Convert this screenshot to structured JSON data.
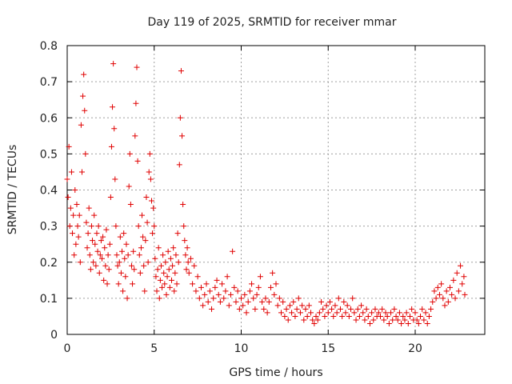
{
  "chart_data": {
    "type": "scatter",
    "title": "Day 119 of 2025, SRMTID for receiver mmar",
    "xlabel": "GPS time / hours",
    "ylabel": "SRMTID / TECUs",
    "xlim": [
      0,
      24
    ],
    "ylim": [
      0,
      0.8
    ],
    "xticks": [
      0,
      5,
      10,
      15,
      20
    ],
    "yticks": [
      0,
      0.1,
      0.2,
      0.3,
      0.4,
      0.5,
      0.6,
      0.7,
      0.8
    ],
    "xtick_labels": [
      "0",
      "5",
      "10",
      "15",
      "20"
    ],
    "ytick_labels": [
      "0",
      "0.1",
      "0.2",
      "0.3",
      "0.4",
      "0.5",
      "0.6",
      "0.7",
      "0.8"
    ],
    "grid": true,
    "marker": "+",
    "marker_color": "#e00000",
    "series": [
      {
        "name": "SRMTID",
        "points": [
          [
            0.0,
            0.43
          ],
          [
            0.05,
            0.38
          ],
          [
            0.1,
            0.52
          ],
          [
            0.15,
            0.3
          ],
          [
            0.2,
            0.35
          ],
          [
            0.25,
            0.45
          ],
          [
            0.3,
            0.28
          ],
          [
            0.35,
            0.33
          ],
          [
            0.4,
            0.22
          ],
          [
            0.45,
            0.4
          ],
          [
            0.5,
            0.25
          ],
          [
            0.55,
            0.36
          ],
          [
            0.6,
            0.3
          ],
          [
            0.65,
            0.27
          ],
          [
            0.7,
            0.33
          ],
          [
            0.75,
            0.2
          ],
          [
            0.8,
            0.58
          ],
          [
            0.85,
            0.45
          ],
          [
            0.9,
            0.66
          ],
          [
            0.95,
            0.72
          ],
          [
            1.0,
            0.62
          ],
          [
            1.05,
            0.5
          ],
          [
            1.1,
            0.31
          ],
          [
            1.15,
            0.24
          ],
          [
            1.2,
            0.28
          ],
          [
            1.25,
            0.35
          ],
          [
            1.3,
            0.22
          ],
          [
            1.35,
            0.18
          ],
          [
            1.4,
            0.3
          ],
          [
            1.45,
            0.26
          ],
          [
            1.5,
            0.2
          ],
          [
            1.55,
            0.33
          ],
          [
            1.6,
            0.25
          ],
          [
            1.65,
            0.19
          ],
          [
            1.7,
            0.28
          ],
          [
            1.75,
            0.23
          ],
          [
            1.8,
            0.3
          ],
          [
            1.85,
            0.17
          ],
          [
            1.9,
            0.22
          ],
          [
            1.95,
            0.26
          ],
          [
            2.0,
            0.21
          ],
          [
            2.05,
            0.27
          ],
          [
            2.1,
            0.15
          ],
          [
            2.15,
            0.24
          ],
          [
            2.2,
            0.19
          ],
          [
            2.25,
            0.29
          ],
          [
            2.3,
            0.14
          ],
          [
            2.35,
            0.22
          ],
          [
            2.4,
            0.18
          ],
          [
            2.45,
            0.25
          ],
          [
            2.5,
            0.38
          ],
          [
            2.55,
            0.52
          ],
          [
            2.6,
            0.63
          ],
          [
            2.65,
            0.75
          ],
          [
            2.7,
            0.57
          ],
          [
            2.75,
            0.43
          ],
          [
            2.8,
            0.3
          ],
          [
            2.85,
            0.22
          ],
          [
            2.9,
            0.19
          ],
          [
            2.95,
            0.14
          ],
          [
            3.0,
            0.2
          ],
          [
            3.05,
            0.27
          ],
          [
            3.1,
            0.17
          ],
          [
            3.15,
            0.23
          ],
          [
            3.2,
            0.12
          ],
          [
            3.25,
            0.28
          ],
          [
            3.3,
            0.21
          ],
          [
            3.35,
            0.16
          ],
          [
            3.4,
            0.25
          ],
          [
            3.45,
            0.1
          ],
          [
            3.5,
            0.22
          ],
          [
            3.55,
            0.41
          ],
          [
            3.6,
            0.5
          ],
          [
            3.65,
            0.36
          ],
          [
            3.7,
            0.19
          ],
          [
            3.75,
            0.14
          ],
          [
            3.8,
            0.23
          ],
          [
            3.85,
            0.18
          ],
          [
            3.9,
            0.55
          ],
          [
            3.95,
            0.64
          ],
          [
            4.0,
            0.74
          ],
          [
            4.05,
            0.48
          ],
          [
            4.1,
            0.3
          ],
          [
            4.15,
            0.22
          ],
          [
            4.2,
            0.17
          ],
          [
            4.25,
            0.24
          ],
          [
            4.3,
            0.33
          ],
          [
            4.35,
            0.27
          ],
          [
            4.4,
            0.19
          ],
          [
            4.45,
            0.12
          ],
          [
            4.5,
            0.26
          ],
          [
            4.55,
            0.38
          ],
          [
            4.6,
            0.31
          ],
          [
            4.65,
            0.2
          ],
          [
            4.7,
            0.45
          ],
          [
            4.75,
            0.5
          ],
          [
            4.8,
            0.43
          ],
          [
            4.85,
            0.37
          ],
          [
            4.9,
            0.28
          ],
          [
            4.95,
            0.35
          ],
          [
            5.0,
            0.3
          ],
          [
            5.05,
            0.21
          ],
          [
            5.1,
            0.16
          ],
          [
            5.15,
            0.12
          ],
          [
            5.2,
            0.18
          ],
          [
            5.25,
            0.24
          ],
          [
            5.3,
            0.1
          ],
          [
            5.35,
            0.15
          ],
          [
            5.4,
            0.19
          ],
          [
            5.45,
            0.13
          ],
          [
            5.5,
            0.22
          ],
          [
            5.55,
            0.17
          ],
          [
            5.6,
            0.14
          ],
          [
            5.65,
            0.2
          ],
          [
            5.7,
            0.11
          ],
          [
            5.75,
            0.16
          ],
          [
            5.8,
            0.23
          ],
          [
            5.85,
            0.18
          ],
          [
            5.9,
            0.13
          ],
          [
            5.95,
            0.21
          ],
          [
            6.0,
            0.15
          ],
          [
            6.05,
            0.19
          ],
          [
            6.1,
            0.24
          ],
          [
            6.15,
            0.12
          ],
          [
            6.2,
            0.17
          ],
          [
            6.25,
            0.22
          ],
          [
            6.3,
            0.14
          ],
          [
            6.35,
            0.28
          ],
          [
            6.4,
            0.2
          ],
          [
            6.45,
            0.47
          ],
          [
            6.5,
            0.6
          ],
          [
            6.55,
            0.73
          ],
          [
            6.6,
            0.55
          ],
          [
            6.65,
            0.36
          ],
          [
            6.7,
            0.3
          ],
          [
            6.75,
            0.26
          ],
          [
            6.8,
            0.22
          ],
          [
            6.85,
            0.18
          ],
          [
            6.9,
            0.24
          ],
          [
            6.95,
            0.2
          ],
          [
            7.0,
            0.17
          ],
          [
            7.1,
            0.21
          ],
          [
            7.2,
            0.14
          ],
          [
            7.3,
            0.19
          ],
          [
            7.4,
            0.12
          ],
          [
            7.5,
            0.16
          ],
          [
            7.6,
            0.1
          ],
          [
            7.7,
            0.13
          ],
          [
            7.8,
            0.08
          ],
          [
            7.9,
            0.11
          ],
          [
            8.0,
            0.14
          ],
          [
            8.1,
            0.09
          ],
          [
            8.2,
            0.12
          ],
          [
            8.3,
            0.07
          ],
          [
            8.4,
            0.1
          ],
          [
            8.5,
            0.13
          ],
          [
            8.6,
            0.15
          ],
          [
            8.7,
            0.11
          ],
          [
            8.8,
            0.09
          ],
          [
            8.9,
            0.14
          ],
          [
            9.0,
            0.1
          ],
          [
            9.1,
            0.12
          ],
          [
            9.2,
            0.16
          ],
          [
            9.3,
            0.08
          ],
          [
            9.4,
            0.11
          ],
          [
            9.5,
            0.23
          ],
          [
            9.6,
            0.13
          ],
          [
            9.7,
            0.09
          ],
          [
            9.8,
            0.12
          ],
          [
            9.9,
            0.07
          ],
          [
            10.0,
            0.1
          ],
          [
            10.1,
            0.08
          ],
          [
            10.2,
            0.11
          ],
          [
            10.3,
            0.06
          ],
          [
            10.4,
            0.09
          ],
          [
            10.5,
            0.12
          ],
          [
            10.6,
            0.14
          ],
          [
            10.7,
            0.1
          ],
          [
            10.8,
            0.07
          ],
          [
            10.9,
            0.11
          ],
          [
            11.0,
            0.13
          ],
          [
            11.1,
            0.16
          ],
          [
            11.2,
            0.09
          ],
          [
            11.3,
            0.07
          ],
          [
            11.4,
            0.1
          ],
          [
            11.5,
            0.06
          ],
          [
            11.6,
            0.09
          ],
          [
            11.7,
            0.13
          ],
          [
            11.8,
            0.17
          ],
          [
            11.9,
            0.11
          ],
          [
            12.0,
            0.14
          ],
          [
            12.1,
            0.08
          ],
          [
            12.2,
            0.1
          ],
          [
            12.3,
            0.06
          ],
          [
            12.4,
            0.09
          ],
          [
            12.5,
            0.05
          ],
          [
            12.6,
            0.07
          ],
          [
            12.7,
            0.04
          ],
          [
            12.8,
            0.08
          ],
          [
            12.9,
            0.06
          ],
          [
            13.0,
            0.09
          ],
          [
            13.1,
            0.05
          ],
          [
            13.2,
            0.07
          ],
          [
            13.3,
            0.1
          ],
          [
            13.4,
            0.06
          ],
          [
            13.5,
            0.08
          ],
          [
            13.6,
            0.04
          ],
          [
            13.7,
            0.07
          ],
          [
            13.8,
            0.05
          ],
          [
            13.9,
            0.08
          ],
          [
            14.0,
            0.06
          ],
          [
            14.1,
            0.04
          ],
          [
            14.2,
            0.03
          ],
          [
            14.3,
            0.05
          ],
          [
            14.4,
            0.04
          ],
          [
            14.5,
            0.06
          ],
          [
            14.6,
            0.09
          ],
          [
            14.7,
            0.07
          ],
          [
            14.8,
            0.05
          ],
          [
            14.9,
            0.08
          ],
          [
            15.0,
            0.06
          ],
          [
            15.1,
            0.09
          ],
          [
            15.2,
            0.07
          ],
          [
            15.3,
            0.05
          ],
          [
            15.4,
            0.08
          ],
          [
            15.5,
            0.06
          ],
          [
            15.6,
            0.1
          ],
          [
            15.7,
            0.07
          ],
          [
            15.8,
            0.05
          ],
          [
            15.9,
            0.09
          ],
          [
            16.0,
            0.06
          ],
          [
            16.1,
            0.08
          ],
          [
            16.2,
            0.05
          ],
          [
            16.3,
            0.07
          ],
          [
            16.4,
            0.1
          ],
          [
            16.5,
            0.06
          ],
          [
            16.6,
            0.04
          ],
          [
            16.7,
            0.07
          ],
          [
            16.8,
            0.05
          ],
          [
            16.9,
            0.08
          ],
          [
            17.0,
            0.06
          ],
          [
            17.1,
            0.04
          ],
          [
            17.2,
            0.07
          ],
          [
            17.3,
            0.05
          ],
          [
            17.4,
            0.03
          ],
          [
            17.5,
            0.06
          ],
          [
            17.6,
            0.04
          ],
          [
            17.7,
            0.07
          ],
          [
            17.8,
            0.05
          ],
          [
            17.9,
            0.06
          ],
          [
            18.0,
            0.05
          ],
          [
            18.1,
            0.07
          ],
          [
            18.2,
            0.04
          ],
          [
            18.3,
            0.06
          ],
          [
            18.4,
            0.05
          ],
          [
            18.5,
            0.03
          ],
          [
            18.6,
            0.06
          ],
          [
            18.7,
            0.04
          ],
          [
            18.8,
            0.07
          ],
          [
            18.9,
            0.05
          ],
          [
            19.0,
            0.04
          ],
          [
            19.1,
            0.06
          ],
          [
            19.2,
            0.03
          ],
          [
            19.3,
            0.05
          ],
          [
            19.4,
            0.04
          ],
          [
            19.5,
            0.06
          ],
          [
            19.6,
            0.03
          ],
          [
            19.7,
            0.05
          ],
          [
            19.8,
            0.07
          ],
          [
            19.9,
            0.04
          ],
          [
            20.0,
            0.06
          ],
          [
            20.1,
            0.04
          ],
          [
            20.2,
            0.03
          ],
          [
            20.3,
            0.05
          ],
          [
            20.4,
            0.07
          ],
          [
            20.5,
            0.04
          ],
          [
            20.6,
            0.06
          ],
          [
            20.7,
            0.03
          ],
          [
            20.8,
            0.05
          ],
          [
            20.9,
            0.07
          ],
          [
            21.0,
            0.09
          ],
          [
            21.1,
            0.12
          ],
          [
            21.2,
            0.1
          ],
          [
            21.3,
            0.13
          ],
          [
            21.4,
            0.11
          ],
          [
            21.5,
            0.14
          ],
          [
            21.6,
            0.1
          ],
          [
            21.7,
            0.08
          ],
          [
            21.8,
            0.12
          ],
          [
            21.9,
            0.09
          ],
          [
            22.0,
            0.13
          ],
          [
            22.1,
            0.11
          ],
          [
            22.2,
            0.15
          ],
          [
            22.3,
            0.1
          ],
          [
            22.4,
            0.17
          ],
          [
            22.5,
            0.12
          ],
          [
            22.6,
            0.19
          ],
          [
            22.7,
            0.14
          ],
          [
            22.8,
            0.16
          ],
          [
            22.85,
            0.11
          ]
        ]
      }
    ]
  }
}
